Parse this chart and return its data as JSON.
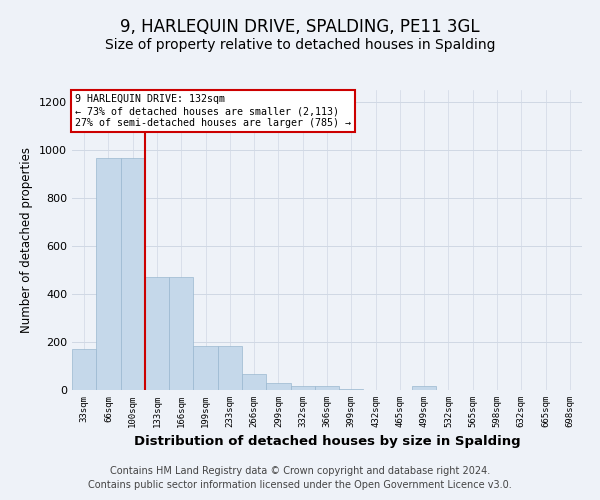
{
  "title": "9, HARLEQUIN DRIVE, SPALDING, PE11 3GL",
  "subtitle": "Size of property relative to detached houses in Spalding",
  "xlabel": "Distribution of detached houses by size in Spalding",
  "ylabel": "Number of detached properties",
  "footer_line1": "Contains HM Land Registry data © Crown copyright and database right 2024.",
  "footer_line2": "Contains public sector information licensed under the Open Government Licence v3.0.",
  "annotation_line1": "9 HARLEQUIN DRIVE: 132sqm",
  "annotation_line2": "← 73% of detached houses are smaller (2,113)",
  "annotation_line3": "27% of semi-detached houses are larger (785) →",
  "bar_labels": [
    "33sqm",
    "66sqm",
    "100sqm",
    "133sqm",
    "166sqm",
    "199sqm",
    "233sqm",
    "266sqm",
    "299sqm",
    "332sqm",
    "366sqm",
    "399sqm",
    "432sqm",
    "465sqm",
    "499sqm",
    "532sqm",
    "565sqm",
    "598sqm",
    "632sqm",
    "665sqm",
    "698sqm"
  ],
  "bar_values": [
    170,
    968,
    968,
    470,
    470,
    183,
    183,
    65,
    28,
    15,
    15,
    5,
    0,
    0,
    15,
    0,
    0,
    0,
    0,
    0,
    0
  ],
  "bar_color": "#c5d8ea",
  "bar_edge_color": "#9ab8d0",
  "vline_x_index": 3,
  "vline_color": "#cc0000",
  "ylim": [
    0,
    1250
  ],
  "yticks": [
    0,
    200,
    400,
    600,
    800,
    1000,
    1200
  ],
  "grid_color": "#d0d8e4",
  "bg_color": "#eef2f8",
  "annotation_box_color": "#ffffff",
  "annotation_box_edge": "#cc0000",
  "title_fontsize": 12,
  "subtitle_fontsize": 10,
  "xlabel_fontsize": 9.5,
  "ylabel_fontsize": 8.5,
  "footer_fontsize": 7
}
